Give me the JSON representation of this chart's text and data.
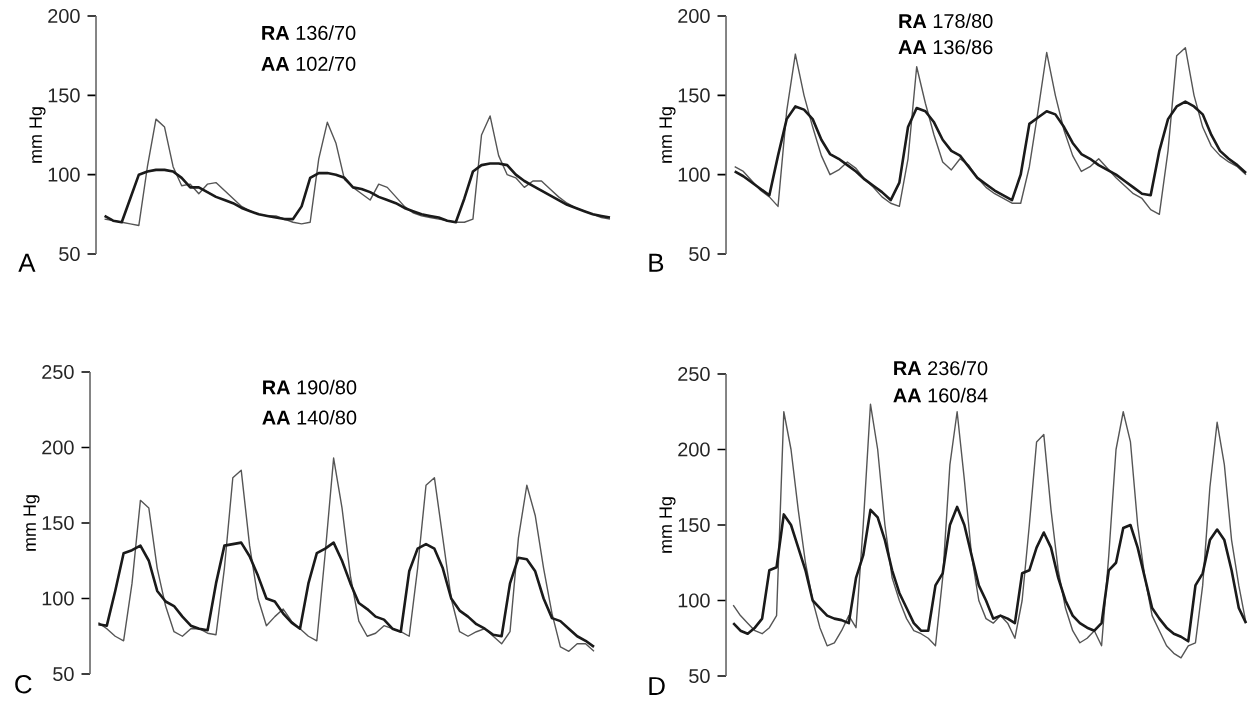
{
  "chart_data": [
    {
      "type": "line",
      "title": "A",
      "ylabel": "mm Hg",
      "ylim": [
        50,
        200
      ],
      "yticks": [
        50,
        100,
        150,
        200
      ],
      "annotations": [
        "**RA** 136/70",
        "**AA** 102/70"
      ],
      "categories": [
        null,
        null,
        null,
        null,
        null,
        null,
        null,
        null,
        null,
        null,
        null,
        null,
        null,
        null,
        null,
        null,
        null,
        null,
        null,
        null,
        null,
        null,
        null,
        null,
        null,
        null,
        null,
        null,
        null,
        null,
        null,
        null,
        null,
        null,
        null,
        null,
        null,
        null,
        null,
        null,
        null,
        null,
        null,
        null,
        null,
        null,
        null,
        null,
        null,
        null,
        null,
        null,
        null,
        null,
        null,
        null,
        null,
        null,
        null,
        null
      ],
      "series": [
        {
          "color": "#555555",
          "values": [
            72,
            71,
            70,
            69,
            68,
            105,
            135,
            130,
            105,
            93,
            94,
            88,
            94,
            95,
            90,
            85,
            80,
            77,
            75,
            74,
            74,
            72,
            70,
            69,
            70,
            110,
            133,
            120,
            97,
            92,
            88,
            84,
            94,
            92,
            86,
            80,
            76,
            74,
            73,
            72,
            71,
            70,
            70,
            72,
            125,
            137,
            112,
            100,
            98,
            92,
            96,
            96,
            91,
            86,
            82,
            79,
            77,
            75,
            73,
            72
          ]
        },
        {
          "color": "#1a1a1a",
          "values": [
            74,
            71,
            70,
            85,
            100,
            102,
            103,
            103,
            102,
            98,
            92,
            92,
            89,
            86,
            84,
            82,
            79,
            77,
            75,
            74,
            73,
            72,
            72,
            80,
            98,
            101,
            101,
            100,
            98,
            92,
            91,
            89,
            86,
            84,
            82,
            79,
            77,
            75,
            74,
            73,
            71,
            70,
            85,
            102,
            106,
            107,
            107,
            106,
            100,
            96,
            93,
            90,
            87,
            84,
            81,
            79,
            77,
            75,
            74,
            73
          ]
        }
      ]
    },
    {
      "type": "line",
      "title": "B",
      "ylabel": "mm Hg",
      "ylim": [
        50,
        200
      ],
      "yticks": [
        50,
        100,
        150,
        200
      ],
      "annotations": [
        "**RA** 178/80",
        "**AA** 136/86"
      ],
      "categories": [
        null,
        null,
        null,
        null,
        null,
        null,
        null,
        null,
        null,
        null,
        null,
        null,
        null,
        null,
        null,
        null,
        null,
        null,
        null,
        null,
        null,
        null,
        null,
        null,
        null,
        null,
        null,
        null,
        null,
        null,
        null,
        null,
        null,
        null,
        null,
        null,
        null,
        null,
        null,
        null,
        null,
        null,
        null,
        null,
        null,
        null,
        null,
        null,
        null,
        null,
        null,
        null,
        null,
        null,
        null,
        null,
        null,
        null,
        null,
        null
      ],
      "series": [
        {
          "color": "#555555",
          "values": [
            105,
            102,
            96,
            90,
            86,
            80,
            140,
            176,
            150,
            130,
            112,
            100,
            103,
            108,
            104,
            97,
            92,
            86,
            82,
            80,
            110,
            168,
            145,
            125,
            108,
            103,
            110,
            106,
            98,
            92,
            88,
            85,
            82,
            82,
            105,
            140,
            177,
            150,
            128,
            112,
            102,
            105,
            110,
            104,
            98,
            93,
            88,
            85,
            78,
            75,
            115,
            175,
            180,
            150,
            130,
            118,
            112,
            108,
            105,
            100
          ]
        },
        {
          "color": "#1a1a1a",
          "values": [
            102,
            99,
            95,
            91,
            87,
            112,
            135,
            143,
            141,
            135,
            122,
            113,
            110,
            106,
            102,
            97,
            93,
            89,
            84,
            95,
            130,
            142,
            140,
            133,
            122,
            115,
            112,
            105,
            98,
            94,
            90,
            87,
            84,
            100,
            132,
            136,
            140,
            138,
            130,
            120,
            113,
            110,
            106,
            103,
            100,
            96,
            92,
            88,
            87,
            115,
            135,
            143,
            146,
            143,
            138,
            125,
            115,
            110,
            106,
            101
          ]
        }
      ]
    },
    {
      "type": "line",
      "title": "C",
      "ylabel": "mm Hg",
      "ylim": [
        50,
        250
      ],
      "yticks": [
        50,
        100,
        150,
        200,
        250
      ],
      "annotations": [
        "**RA** 190/80",
        "**AA** 140/80"
      ],
      "categories": [
        null,
        null,
        null,
        null,
        null,
        null,
        null,
        null,
        null,
        null,
        null,
        null,
        null,
        null,
        null,
        null,
        null,
        null,
        null,
        null,
        null,
        null,
        null,
        null,
        null,
        null,
        null,
        null,
        null,
        null,
        null,
        null,
        null,
        null,
        null,
        null,
        null,
        null,
        null,
        null,
        null,
        null,
        null,
        null,
        null,
        null,
        null,
        null,
        null,
        null,
        null,
        null,
        null,
        null,
        null,
        null,
        null,
        null,
        null,
        null
      ],
      "series": [
        {
          "color": "#555555",
          "values": [
            84,
            80,
            75,
            72,
            110,
            165,
            160,
            120,
            95,
            78,
            75,
            80,
            80,
            77,
            76,
            120,
            180,
            185,
            135,
            100,
            82,
            88,
            93,
            85,
            80,
            75,
            72,
            130,
            193,
            160,
            115,
            85,
            75,
            77,
            82,
            80,
            78,
            75,
            120,
            175,
            180,
            140,
            100,
            78,
            75,
            78,
            80,
            75,
            70,
            78,
            140,
            175,
            155,
            120,
            90,
            68,
            65,
            70,
            70,
            65
          ]
        },
        {
          "color": "#1a1a1a",
          "values": [
            83,
            82,
            105,
            130,
            132,
            135,
            125,
            105,
            98,
            95,
            88,
            82,
            80,
            79,
            110,
            135,
            136,
            137,
            128,
            115,
            100,
            98,
            90,
            84,
            80,
            110,
            130,
            133,
            137,
            125,
            110,
            97,
            93,
            88,
            86,
            80,
            78,
            118,
            133,
            136,
            133,
            120,
            100,
            92,
            88,
            83,
            80,
            76,
            75,
            110,
            127,
            126,
            118,
            100,
            87,
            85,
            80,
            75,
            72,
            68
          ]
        }
      ]
    },
    {
      "type": "line",
      "title": "D",
      "ylabel": "mm Hg",
      "ylim": [
        50,
        250
      ],
      "yticks": [
        50,
        100,
        150,
        200,
        250
      ],
      "annotations": [
        "**RA** 236/70",
        "**AA** 160/84"
      ],
      "categories": [
        null,
        null,
        null,
        null,
        null,
        null,
        null,
        null,
        null,
        null,
        null,
        null,
        null,
        null,
        null,
        null,
        null,
        null,
        null,
        null,
        null,
        null,
        null,
        null,
        null,
        null,
        null,
        null,
        null,
        null,
        null,
        null,
        null,
        null,
        null,
        null,
        null,
        null,
        null,
        null,
        null,
        null,
        null,
        null,
        null,
        null,
        null,
        null,
        null,
        null,
        null,
        null,
        null,
        null,
        null,
        null,
        null,
        null,
        null,
        null,
        null,
        null,
        null,
        null,
        null,
        null,
        null,
        null,
        null,
        null,
        null,
        null
      ],
      "series": [
        {
          "color": "#555555",
          "values": [
            97,
            90,
            85,
            80,
            78,
            82,
            90,
            225,
            200,
            160,
            125,
            100,
            82,
            70,
            72,
            80,
            90,
            82,
            150,
            230,
            200,
            150,
            115,
            100,
            88,
            80,
            78,
            75,
            70,
            115,
            190,
            225,
            180,
            130,
            100,
            88,
            85,
            90,
            85,
            75,
            100,
            150,
            205,
            210,
            160,
            120,
            95,
            80,
            72,
            75,
            80,
            70,
            130,
            200,
            225,
            205,
            150,
            115,
            90,
            80,
            70,
            65,
            62,
            70,
            72,
            110,
            175,
            218,
            190,
            140,
            110,
            85
          ]
        },
        {
          "color": "#1a1a1a",
          "values": [
            85,
            80,
            78,
            82,
            88,
            120,
            122,
            157,
            150,
            135,
            120,
            100,
            95,
            90,
            88,
            87,
            85,
            115,
            130,
            160,
            155,
            140,
            120,
            105,
            95,
            85,
            80,
            80,
            110,
            118,
            150,
            162,
            150,
            130,
            110,
            100,
            88,
            90,
            88,
            85,
            118,
            120,
            135,
            145,
            135,
            115,
            100,
            90,
            85,
            82,
            80,
            85,
            120,
            125,
            148,
            150,
            135,
            115,
            95,
            88,
            82,
            78,
            76,
            73,
            110,
            118,
            140,
            147,
            140,
            120,
            95,
            85
          ]
        }
      ]
    }
  ]
}
